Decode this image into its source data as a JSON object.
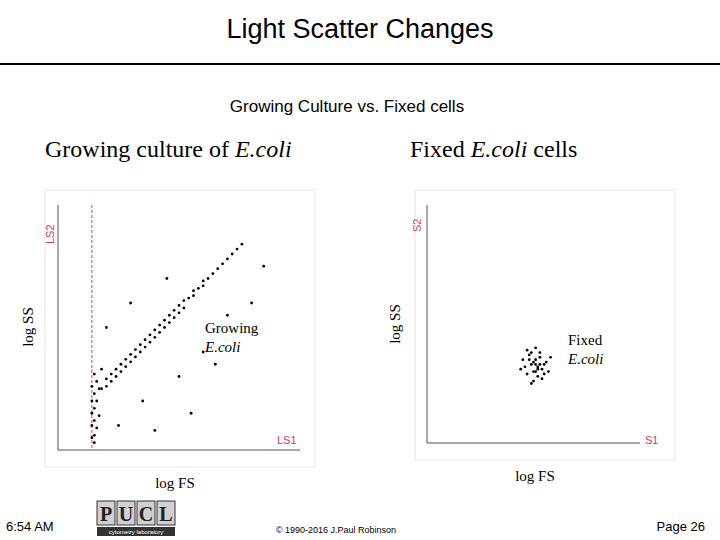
{
  "header": {
    "title": "Light Scatter Changes",
    "subtitle": "Growing Culture vs. Fixed cells"
  },
  "footer": {
    "time": "6:54 AM",
    "logo": [
      "P",
      "U",
      "C",
      "L"
    ],
    "logo_caption": "cytometry laboratory",
    "copyright": "© 1990-2016 J.Paul Robinson",
    "page": "Page 26"
  },
  "chart_data": [
    {
      "type": "scatter",
      "title": "Growing culture of E.coli",
      "title_italic": "E.coli",
      "x_label": "log FS",
      "y_label": "log SS",
      "annotation": [
        "Growing",
        "E.coli"
      ],
      "corner_labels": {
        "x": "LS1",
        "y": "LS2"
      },
      "threshold": 14,
      "xlim": [
        0,
        100
      ],
      "ylim": [
        0,
        100
      ],
      "tick_labels": false,
      "color": "#000000",
      "marker": "dot",
      "x": [
        15,
        15,
        16,
        15,
        17,
        15,
        16,
        15,
        17,
        16,
        15,
        18,
        14,
        14,
        14,
        14,
        14,
        18,
        20,
        20,
        22,
        22,
        24,
        24,
        26,
        26,
        28,
        28,
        30,
        30,
        32,
        32,
        34,
        34,
        36,
        36,
        38,
        38,
        40,
        40,
        42,
        42,
        44,
        44,
        46,
        46,
        48,
        48,
        50,
        50,
        52,
        52,
        54,
        56,
        56,
        58,
        60,
        60,
        62,
        64,
        66,
        68,
        70,
        72,
        74,
        76,
        25,
        35,
        50,
        60,
        45,
        30,
        70,
        80,
        20,
        55,
        85,
        40,
        65
      ],
      "values": [
        3,
        6,
        9,
        12,
        14,
        17,
        20,
        23,
        25,
        28,
        31,
        33,
        5,
        10,
        15,
        20,
        26,
        25,
        26,
        29,
        28,
        31,
        30,
        33,
        32,
        35,
        34,
        37,
        36,
        39,
        38,
        41,
        40,
        43,
        42,
        45,
        44,
        47,
        46,
        49,
        48,
        51,
        50,
        53,
        52,
        55,
        54,
        57,
        56,
        59,
        58,
        61,
        62,
        63,
        65,
        66,
        67,
        69,
        70,
        72,
        74,
        76,
        78,
        80,
        82,
        84,
        10,
        20,
        30,
        40,
        70,
        60,
        55,
        60,
        50,
        15,
        75,
        8,
        35
      ]
    },
    {
      "type": "scatter",
      "title": "Fixed  E.coli cells",
      "title_italic": "E.coli",
      "x_label": "log FS",
      "y_label": "log SS",
      "annotation": [
        "Fixed",
        "E.coli"
      ],
      "corner_labels": {
        "x": "S1",
        "y": "S2"
      },
      "xlim": [
        0,
        100
      ],
      "ylim": [
        0,
        100
      ],
      "tick_labels": false,
      "color": "#000000",
      "marker": "dot",
      "x": [
        51,
        48,
        54,
        50,
        53,
        46,
        56,
        49,
        52,
        47,
        55,
        51,
        50,
        53,
        48,
        57,
        45,
        52,
        49,
        54,
        51,
        44,
        58,
        50,
        52,
        47,
        55,
        49,
        53,
        51
      ],
      "values": [
        33,
        35,
        31,
        30,
        36,
        32,
        34,
        38,
        28,
        29,
        33,
        40,
        26,
        38,
        37,
        30,
        35,
        31,
        33,
        27,
        35,
        31,
        36,
        34,
        32,
        39,
        29,
        25,
        33,
        30
      ]
    }
  ]
}
